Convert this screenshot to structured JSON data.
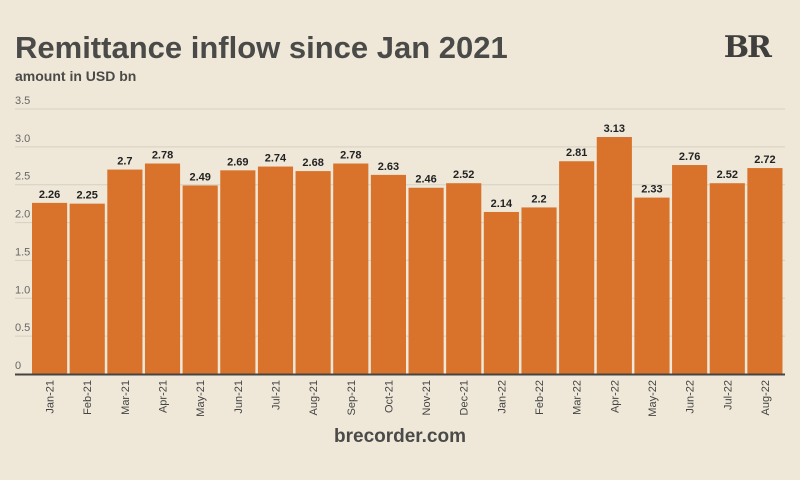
{
  "title": "Remittance inflow since Jan 2021",
  "subtitle": "amount in USD bn",
  "logo": "BR",
  "source": "brecorder.com",
  "colors": {
    "bar": "#d9732b",
    "background": "#efe8d9",
    "text": "#4a4a48"
  },
  "chart_data": {
    "type": "bar",
    "title": "Remittance inflow since Jan 2021",
    "ylabel": "amount in USD bn",
    "xlabel": "",
    "ylim": [
      0,
      3.5
    ],
    "yticks": [
      "0",
      "0.5",
      "1.0",
      "1.5",
      "2.0",
      "2.5",
      "3.0",
      "3.5"
    ],
    "grid": true,
    "categories": [
      "Jan-21",
      "Feb-21",
      "Mar-21",
      "Apr-21",
      "May-21",
      "Jun-21",
      "Jul-21",
      "Aug-21",
      "Sep-21",
      "Oct-21",
      "Nov-21",
      "Dec-21",
      "Jan-22",
      "Feb-22",
      "Mar-22",
      "Apr-22",
      "May-22",
      "Jun-22",
      "Jul-22",
      "Aug-22"
    ],
    "values": [
      2.26,
      2.25,
      2.7,
      2.78,
      2.49,
      2.69,
      2.74,
      2.68,
      2.78,
      2.63,
      2.46,
      2.52,
      2.14,
      2.2,
      2.81,
      3.13,
      2.33,
      2.76,
      2.52,
      2.72
    ]
  }
}
